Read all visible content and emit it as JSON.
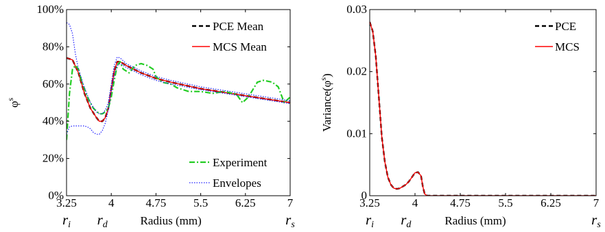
{
  "chart_data": [
    {
      "type": "line",
      "xlabel": "Radius (mm)",
      "ylabel": "φ",
      "ylabel_sup": "s",
      "xticks": [
        3.25,
        4,
        4.75,
        5.5,
        6.25,
        7
      ],
      "xtick_labels": [
        "3.25",
        "4",
        "4.75",
        "5.5",
        "6.25",
        "7"
      ],
      "xsymbols": [
        {
          "x": 3.25,
          "base": "r",
          "sub": "i"
        },
        {
          "x": 3.85,
          "base": "r",
          "sub": "d"
        },
        {
          "x": 7,
          "base": "r",
          "sub": "s"
        }
      ],
      "yticks": [
        0,
        0.2,
        0.4,
        0.6,
        0.8,
        1.0
      ],
      "ytick_labels": [
        "0%",
        "20%",
        "40%",
        "60%",
        "80%",
        "100%"
      ],
      "xlim": [
        3.25,
        7
      ],
      "ylim": [
        0,
        1.0
      ],
      "legend_top": [
        {
          "label": "PCE Mean",
          "color": "#000000",
          "dash": "6,4",
          "width": 2.4
        },
        {
          "label": "MCS Mean",
          "color": "#ff0000",
          "dash": "",
          "width": 1.4
        }
      ],
      "legend_bottom": [
        {
          "label": "Experiment",
          "color": "#22cc22",
          "dash": "8,3,2,3",
          "width": 2.2
        },
        {
          "label": "Envelopes",
          "color": "#1a1aff",
          "dash": "1.5,2",
          "width": 1.2
        }
      ],
      "series": [
        {
          "name": "PCE Mean",
          "color": "#000000",
          "dash": "6,4",
          "width": 2.4,
          "x": [
            3.25,
            3.35,
            3.45,
            3.55,
            3.65,
            3.75,
            3.8,
            3.85,
            3.9,
            3.95,
            4.0,
            4.05,
            4.1,
            4.15,
            4.25,
            4.5,
            4.75,
            5.0,
            5.5,
            6.0,
            6.5,
            7.0
          ],
          "y": [
            0.74,
            0.73,
            0.66,
            0.55,
            0.47,
            0.42,
            0.4,
            0.4,
            0.42,
            0.47,
            0.57,
            0.67,
            0.72,
            0.72,
            0.7,
            0.66,
            0.63,
            0.61,
            0.575,
            0.55,
            0.525,
            0.5
          ]
        },
        {
          "name": "MCS Mean",
          "color": "#ff0000",
          "dash": "",
          "width": 1.4,
          "x": [
            3.25,
            3.35,
            3.45,
            3.55,
            3.65,
            3.75,
            3.8,
            3.85,
            3.9,
            3.95,
            4.0,
            4.05,
            4.1,
            4.15,
            4.25,
            4.5,
            4.75,
            5.0,
            5.5,
            6.0,
            6.5,
            7.0
          ],
          "y": [
            0.74,
            0.73,
            0.66,
            0.55,
            0.47,
            0.42,
            0.4,
            0.4,
            0.42,
            0.47,
            0.57,
            0.67,
            0.72,
            0.72,
            0.7,
            0.66,
            0.63,
            0.61,
            0.575,
            0.55,
            0.525,
            0.5
          ]
        },
        {
          "name": "Experiment",
          "color": "#22cc22",
          "dash": "8,3,2,3",
          "width": 2.2,
          "x": [
            3.25,
            3.3,
            3.35,
            3.4,
            3.45,
            3.5,
            3.6,
            3.7,
            3.8,
            3.85,
            3.9,
            3.95,
            4.0,
            4.05,
            4.1,
            4.15,
            4.2,
            4.3,
            4.4,
            4.5,
            4.6,
            4.7,
            4.75,
            4.85,
            5.0,
            5.1,
            5.3,
            5.5,
            5.7,
            5.9,
            6.1,
            6.2,
            6.3,
            6.45,
            6.55,
            6.7,
            6.8,
            6.9,
            7.0
          ],
          "y": [
            0.3,
            0.55,
            0.68,
            0.7,
            0.68,
            0.62,
            0.53,
            0.47,
            0.44,
            0.44,
            0.45,
            0.47,
            0.53,
            0.62,
            0.7,
            0.72,
            0.68,
            0.66,
            0.7,
            0.71,
            0.7,
            0.68,
            0.64,
            0.61,
            0.6,
            0.58,
            0.56,
            0.56,
            0.55,
            0.56,
            0.545,
            0.5,
            0.53,
            0.61,
            0.62,
            0.61,
            0.585,
            0.5,
            0.53
          ]
        },
        {
          "name": "Envelopes",
          "color": "#1a1aff",
          "dash": "1.5,2",
          "width": 1.2,
          "x": [
            3.25,
            3.3,
            3.35,
            3.4,
            3.45,
            3.55,
            3.65,
            3.75,
            3.8,
            3.85,
            3.9,
            3.95,
            4.0,
            4.05,
            4.1,
            4.15,
            4.25,
            4.5,
            4.75,
            5.0,
            5.5,
            6.0,
            6.5,
            7.0
          ],
          "y": [
            0.93,
            0.92,
            0.87,
            0.76,
            0.68,
            0.58,
            0.5,
            0.45,
            0.44,
            0.44,
            0.46,
            0.5,
            0.6,
            0.7,
            0.745,
            0.74,
            0.71,
            0.67,
            0.64,
            0.62,
            0.585,
            0.56,
            0.535,
            0.51
          ]
        },
        {
          "name": "Envelopes",
          "color": "#1a1aff",
          "dash": "1.5,2",
          "width": 1.2,
          "x": [
            3.25,
            3.3,
            3.35,
            3.45,
            3.55,
            3.6,
            3.65,
            3.7,
            3.75,
            3.8,
            3.85,
            3.9,
            3.95,
            4.0,
            4.05,
            4.1,
            4.15,
            4.25,
            4.5,
            4.75,
            5.0,
            5.5,
            6.0,
            6.5,
            7.0
          ],
          "y": [
            0.33,
            0.37,
            0.375,
            0.375,
            0.375,
            0.37,
            0.36,
            0.34,
            0.33,
            0.33,
            0.35,
            0.39,
            0.46,
            0.56,
            0.65,
            0.7,
            0.71,
            0.69,
            0.65,
            0.62,
            0.6,
            0.57,
            0.545,
            0.52,
            0.495
          ]
        }
      ]
    },
    {
      "type": "line",
      "xlabel": "Radius (mm)",
      "ylabel": "Variance(φ",
      "ylabel_sup": "s",
      "ylabel_end": ")",
      "xticks": [
        3.25,
        4,
        4.75,
        5.5,
        6.25,
        7
      ],
      "xtick_labels": [
        "3.25",
        "4",
        "4.75",
        "5.5",
        "6.25",
        "7"
      ],
      "xsymbols": [
        {
          "x": 3.25,
          "base": "r",
          "sub": "i"
        },
        {
          "x": 3.85,
          "base": "r",
          "sub": "d"
        },
        {
          "x": 7,
          "base": "r",
          "sub": "s"
        }
      ],
      "yticks": [
        0,
        0.01,
        0.02,
        0.03
      ],
      "ytick_labels": [
        "0",
        "0.01",
        "0.02",
        "0.03"
      ],
      "xlim": [
        3.25,
        7
      ],
      "ylim": [
        0,
        0.03
      ],
      "legend_top": [
        {
          "label": "PCE",
          "color": "#000000",
          "dash": "6,4",
          "width": 2.4
        },
        {
          "label": "MCS",
          "color": "#ff0000",
          "dash": "",
          "width": 1.4
        }
      ],
      "legend_bottom": [],
      "series": [
        {
          "name": "PCE",
          "color": "#000000",
          "dash": "6,4",
          "width": 2.4,
          "x": [
            3.25,
            3.3,
            3.35,
            3.4,
            3.45,
            3.5,
            3.55,
            3.6,
            3.65,
            3.7,
            3.75,
            3.8,
            3.85,
            3.9,
            3.95,
            4.0,
            4.05,
            4.1,
            4.13,
            4.16,
            4.2,
            4.3,
            5.0,
            6.0,
            7.0
          ],
          "y": [
            0.028,
            0.0265,
            0.0225,
            0.016,
            0.0095,
            0.0055,
            0.003,
            0.0018,
            0.0012,
            0.0011,
            0.0012,
            0.0015,
            0.0018,
            0.0023,
            0.003,
            0.0037,
            0.0038,
            0.0032,
            0.0015,
            0.0003,
            0.0,
            0.0,
            0.0,
            0.0,
            0.0
          ]
        },
        {
          "name": "MCS",
          "color": "#ff0000",
          "dash": "",
          "width": 1.4,
          "x": [
            3.25,
            3.3,
            3.35,
            3.4,
            3.45,
            3.5,
            3.55,
            3.6,
            3.65,
            3.7,
            3.75,
            3.8,
            3.85,
            3.9,
            3.95,
            4.0,
            4.05,
            4.1,
            4.13,
            4.16,
            4.2,
            4.3,
            5.0,
            6.0,
            7.0
          ],
          "y": [
            0.028,
            0.0265,
            0.0225,
            0.016,
            0.0095,
            0.0055,
            0.003,
            0.0018,
            0.0012,
            0.0011,
            0.0012,
            0.0015,
            0.0018,
            0.0023,
            0.003,
            0.0037,
            0.0038,
            0.0032,
            0.0015,
            0.0003,
            0.0,
            0.0,
            0.0,
            0.0,
            0.0
          ]
        }
      ]
    }
  ]
}
